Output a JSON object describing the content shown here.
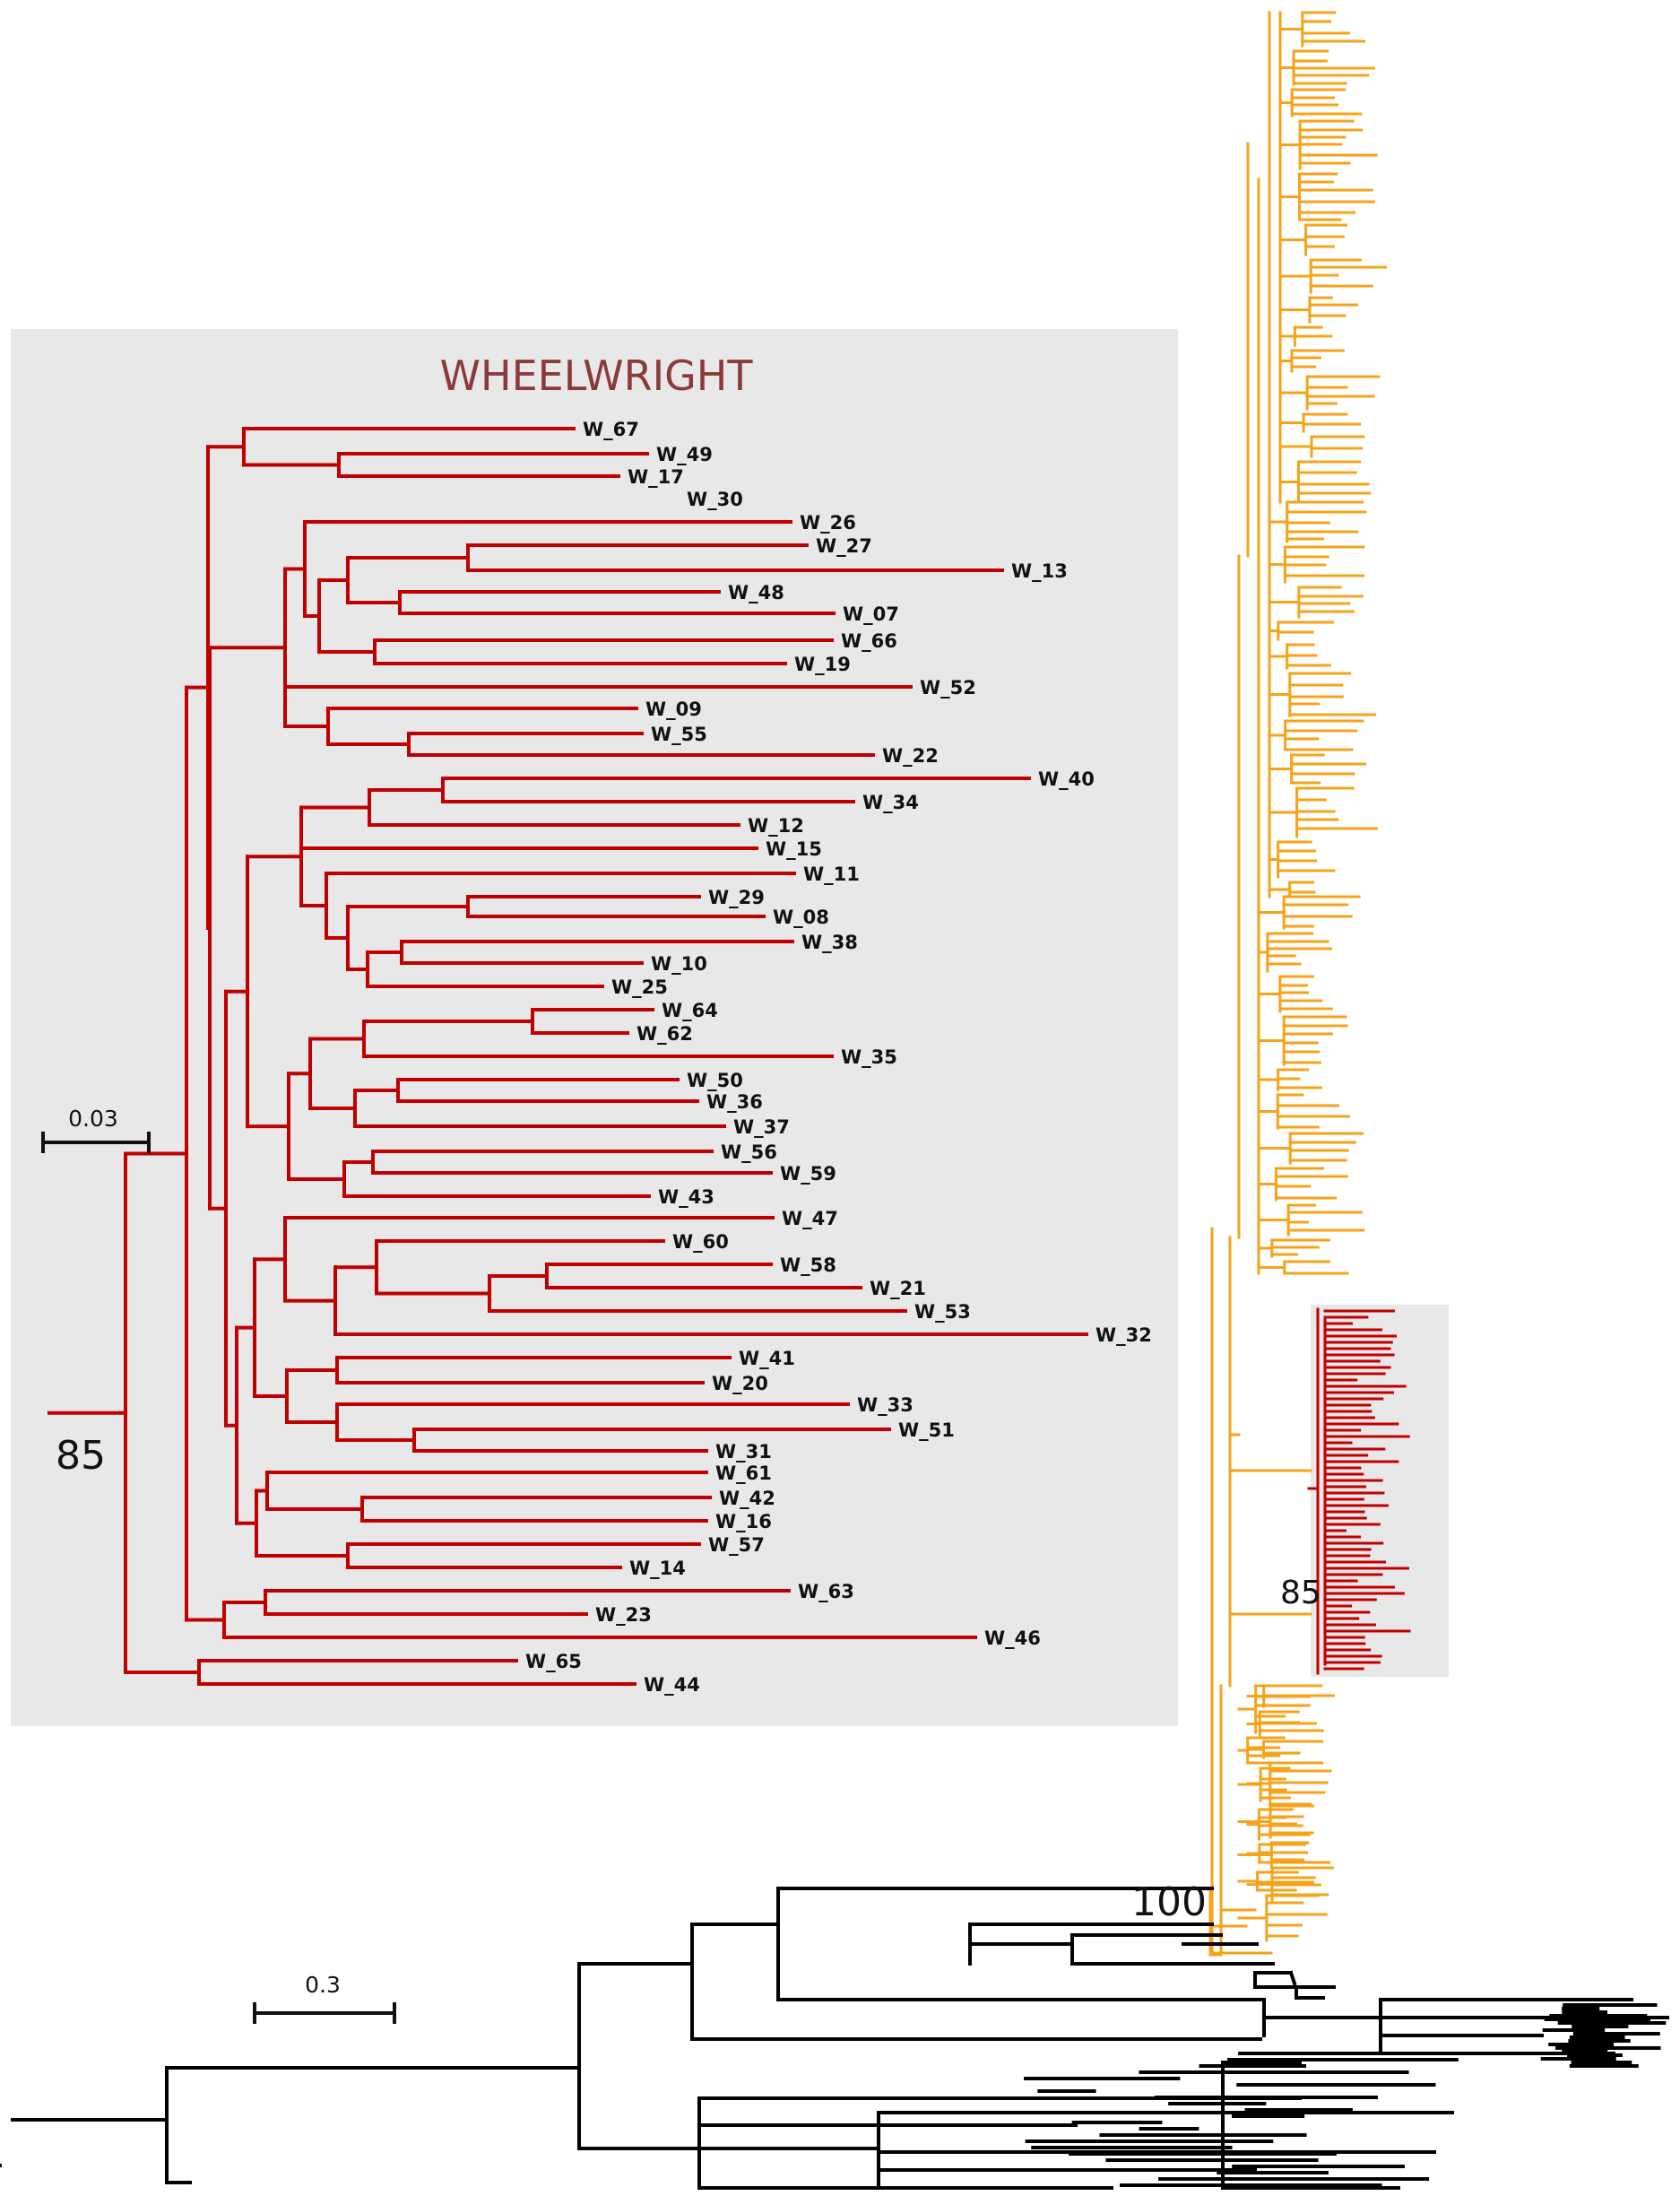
{
  "inset": {
    "title": "WHEELWRIGHT",
    "support_label": "85",
    "scale_label": "0.03",
    "leaf_labels": [
      "W_67",
      "W_49",
      "W_17",
      "W_30",
      "W_26",
      "W_27",
      "W_13",
      "W_48",
      "W_07",
      "W_66",
      "W_19",
      "W_52",
      "W_09",
      "W_55",
      "W_22",
      "W_40",
      "W_34",
      "W_12",
      "W_15",
      "W_11",
      "W_29",
      "W_08",
      "W_38",
      "W_10",
      "W_25",
      "W_64",
      "W_62",
      "W_35",
      "W_50",
      "W_36",
      "W_37",
      "W_56",
      "W_59",
      "W_43",
      "W_47",
      "W_60",
      "W_58",
      "W_21",
      "W_53",
      "W_32",
      "W_41",
      "W_20",
      "W_33",
      "W_51",
      "W_31",
      "W_61",
      "W_42",
      "W_16",
      "W_57",
      "W_14",
      "W_63",
      "W_23",
      "W_46",
      "W_65",
      "W_44"
    ]
  },
  "main_tree": {
    "root_support_label": "100",
    "clade_support_label": "85",
    "scale_label": "0.3"
  },
  "colors": {
    "wheelwright_clade": "#c00000",
    "main_clade": "#f5a31a",
    "outgroup": "#000000",
    "inset_background": "#e8e8e8",
    "title": "#8b3a3a"
  }
}
